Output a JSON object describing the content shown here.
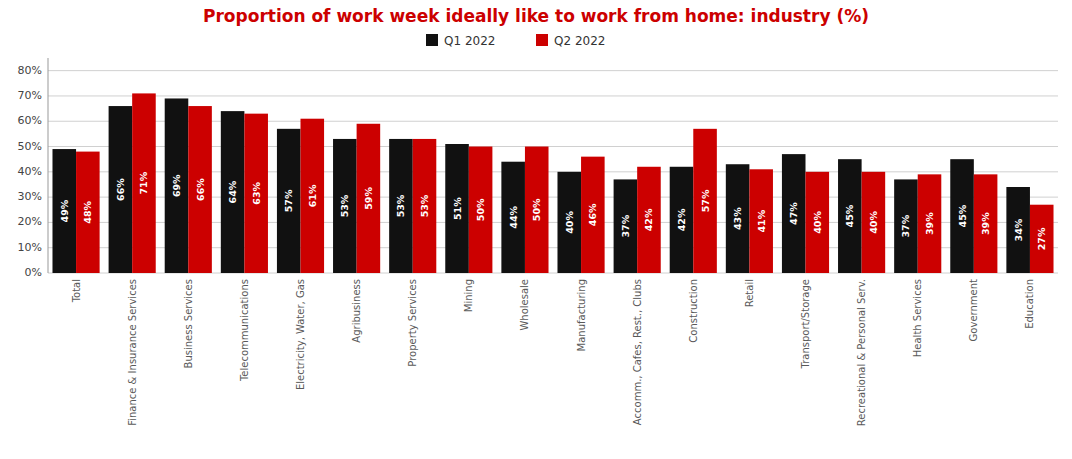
{
  "chart_data": {
    "type": "bar",
    "title": "Proportion of work week ideally like to work from home: industry (%)",
    "categories": [
      "Total",
      "Finance & Insurance Services",
      "Business Services",
      "Telecommunications",
      "Electricity, Water, Gas",
      "Agribusiness",
      "Property Services",
      "Mining",
      "Wholesale",
      "Manufacturing",
      "Accomm., Cafes, Rest., Clubs",
      "Construction",
      "Retail",
      "Transport/Storage",
      "Recreational & Personal Serv.",
      "Health Services",
      "Government",
      "Education"
    ],
    "series": [
      {
        "name": "Q1 2022",
        "color": "#111111",
        "values": [
          49,
          66,
          69,
          64,
          57,
          53,
          53,
          51,
          44,
          40,
          37,
          42,
          43,
          47,
          45,
          37,
          45,
          34
        ],
        "value_labels": [
          "49%",
          "66%",
          "69%",
          "64%",
          "57%",
          "53%",
          "53%",
          "51%",
          "44%",
          "40%",
          "37%",
          "42%",
          "43%",
          "47%",
          "45%",
          "37%",
          "45%",
          "34%"
        ]
      },
      {
        "name": "Q2 2022",
        "color": "#cc0000",
        "values": [
          48,
          71,
          66,
          63,
          61,
          59,
          53,
          50,
          50,
          46,
          42,
          57,
          41,
          40,
          40,
          39,
          39,
          27
        ],
        "value_labels": [
          "48%",
          "71%",
          "66%",
          "63%",
          "61%",
          "59%",
          "53%",
          "50%",
          "50%",
          "46%",
          "42%",
          "57%",
          "41%",
          "40%",
          "40%",
          "39%",
          "39%",
          "27%"
        ]
      }
    ],
    "ylim": [
      0,
      85
    ],
    "yticks": [
      {
        "value": 0,
        "label": "0%"
      },
      {
        "value": 10,
        "label": "10%"
      },
      {
        "value": 20,
        "label": "20%"
      },
      {
        "value": 30,
        "label": "30%"
      },
      {
        "value": 40,
        "label": "40%"
      },
      {
        "value": 50,
        "label": "50%"
      },
      {
        "value": 60,
        "label": "60%"
      },
      {
        "value": 70,
        "label": "70%"
      },
      {
        "value": 80,
        "label": "80%"
      }
    ],
    "grid": true,
    "legend": "top",
    "data_labels": true
  }
}
